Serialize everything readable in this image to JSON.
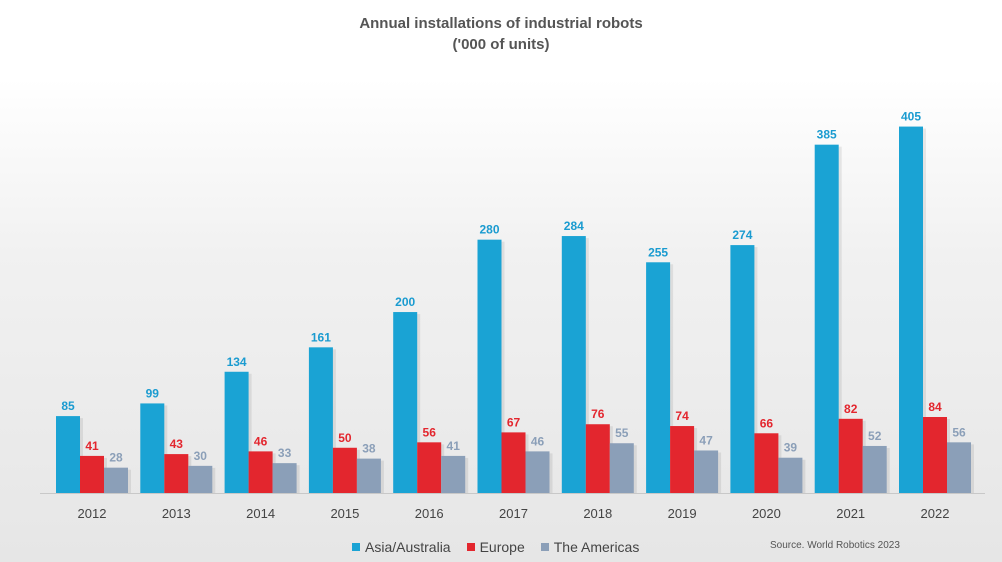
{
  "chart_data": {
    "type": "bar",
    "title": "Annual installations of industrial robots",
    "subtitle": "('000 of units)",
    "categories": [
      "2012",
      "2013",
      "2014",
      "2015",
      "2016",
      "2017",
      "2018",
      "2019",
      "2020",
      "2021",
      "2022"
    ],
    "series": [
      {
        "name": "Asia/Australia",
        "color": "#1aa3d4",
        "label_color": "#1a9bd0",
        "values": [
          85,
          99,
          134,
          161,
          200,
          280,
          284,
          255,
          274,
          385,
          405
        ]
      },
      {
        "name": "Europe",
        "color": "#e3262e",
        "label_color": "#e3262e",
        "values": [
          41,
          43,
          46,
          50,
          56,
          67,
          76,
          74,
          66,
          82,
          84
        ]
      },
      {
        "name": "The Americas",
        "color": "#8b9fb8",
        "label_color": "#8b9fb8",
        "values": [
          28,
          30,
          33,
          38,
          41,
          46,
          55,
          47,
          39,
          52,
          56
        ]
      }
    ],
    "ylim": [
      0,
      420
    ],
    "grid": false,
    "legend_position": "bottom",
    "source": "Source. World Robotics 2023"
  }
}
